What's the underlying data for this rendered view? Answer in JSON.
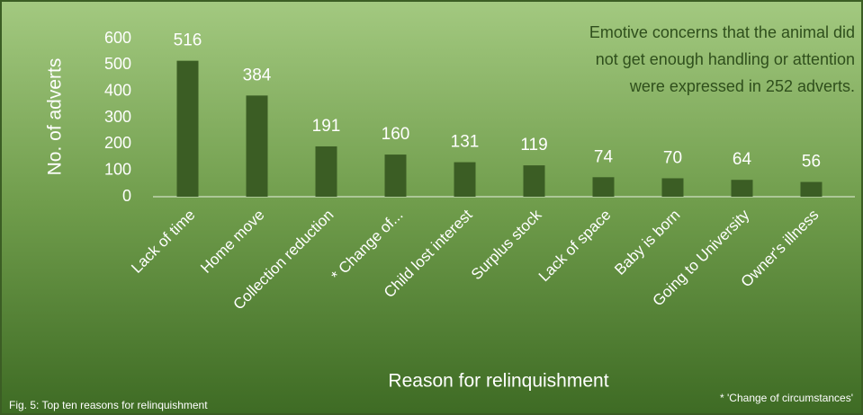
{
  "chart_data": {
    "type": "bar",
    "categories": [
      "Lack of time",
      "Home move",
      "Collection reduction",
      "* Change of...",
      "Child lost interest",
      "Surplus stock",
      "Lack of space",
      "Baby is born",
      "Going to University",
      "Owner's illness"
    ],
    "values": [
      516,
      384,
      191,
      160,
      131,
      119,
      74,
      70,
      64,
      56
    ],
    "color": "#3b5d24",
    "ylim": [
      0,
      600
    ],
    "yticks": [
      0,
      100,
      200,
      300,
      400,
      500,
      600
    ],
    "grid": false,
    "y_label": "No. of adverts",
    "x_label": "Reason for relinquishment",
    "annotation": [
      "Emotive concerns that the animal did",
      "not get enough handling or attention",
      "were expressed in 252 adverts."
    ],
    "caption": "Fig. 5: Top ten reasons for relinquishment",
    "footnote": "* 'Change of circumstances'"
  }
}
